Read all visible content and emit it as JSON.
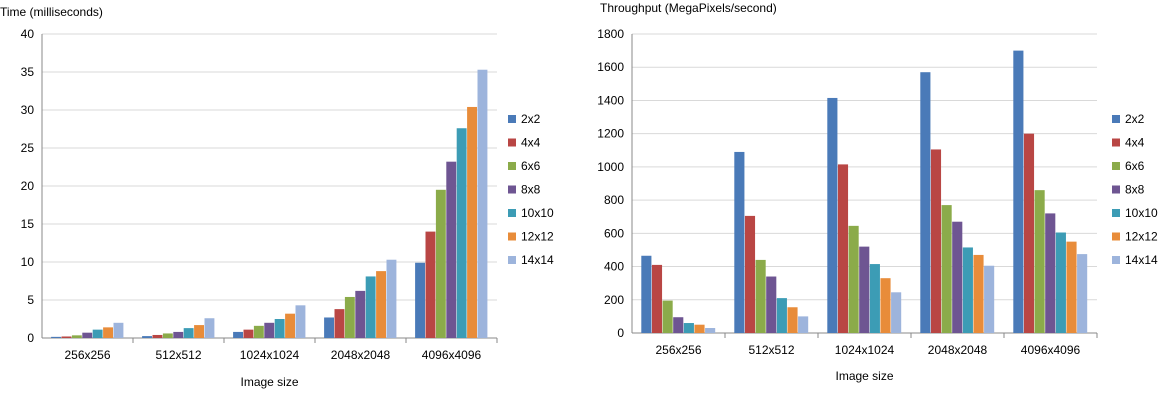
{
  "colors": [
    "#4a7ab8",
    "#b94644",
    "#8bab4a",
    "#6e5592",
    "#3c9cb5",
    "#e88c3a",
    "#9db4dc"
  ],
  "chart_data": [
    {
      "type": "bar",
      "title": "",
      "ylabel": "Time (milliseconds)",
      "xlabel": "Image size",
      "ylim": [
        0,
        40
      ],
      "yticks": [
        0,
        5,
        10,
        15,
        20,
        25,
        30,
        35,
        40
      ],
      "grid": true,
      "legend": "right",
      "categories": [
        "256x256",
        "512x512",
        "1024x1024",
        "2048x2048",
        "4096x4096"
      ],
      "series": [
        {
          "name": "2x2",
          "values": [
            0.15,
            0.25,
            0.8,
            2.7,
            9.9
          ]
        },
        {
          "name": "4x4",
          "values": [
            0.2,
            0.4,
            1.1,
            3.8,
            14.0
          ]
        },
        {
          "name": "6x6",
          "values": [
            0.35,
            0.6,
            1.6,
            5.4,
            19.5
          ]
        },
        {
          "name": "8x8",
          "values": [
            0.7,
            0.8,
            2.0,
            6.2,
            23.2
          ]
        },
        {
          "name": "10x10",
          "values": [
            1.1,
            1.3,
            2.5,
            8.1,
            27.6
          ]
        },
        {
          "name": "12x12",
          "values": [
            1.4,
            1.7,
            3.2,
            8.8,
            30.4
          ]
        },
        {
          "name": "14x14",
          "values": [
            2.0,
            2.6,
            4.3,
            10.3,
            35.3
          ]
        }
      ]
    },
    {
      "type": "bar",
      "title": "",
      "ylabel": "Throughput (MegaPixels/second)",
      "xlabel": "Image size",
      "ylim": [
        0,
        1800
      ],
      "yticks": [
        0,
        200,
        400,
        600,
        800,
        1000,
        1200,
        1400,
        1600,
        1800
      ],
      "grid": true,
      "legend": "right",
      "categories": [
        "256x256",
        "512x512",
        "1024x1024",
        "2048x2048",
        "4096x4096"
      ],
      "series": [
        {
          "name": "2x2",
          "values": [
            465,
            1090,
            1415,
            1570,
            1700
          ]
        },
        {
          "name": "4x4",
          "values": [
            410,
            705,
            1015,
            1105,
            1200
          ]
        },
        {
          "name": "6x6",
          "values": [
            195,
            440,
            645,
            770,
            860
          ]
        },
        {
          "name": "8x8",
          "values": [
            95,
            340,
            520,
            670,
            720
          ]
        },
        {
          "name": "10x10",
          "values": [
            60,
            210,
            415,
            515,
            605
          ]
        },
        {
          "name": "12x12",
          "values": [
            50,
            155,
            330,
            470,
            550
          ]
        },
        {
          "name": "14x14",
          "values": [
            30,
            100,
            245,
            405,
            475
          ]
        }
      ]
    }
  ]
}
